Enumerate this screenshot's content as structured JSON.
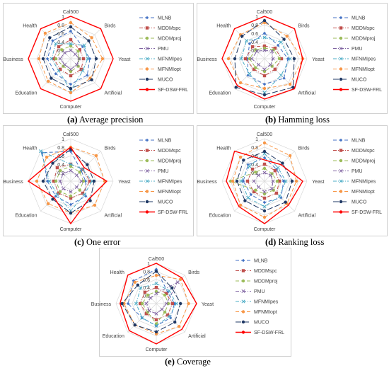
{
  "axes": [
    "Cal500",
    "Birds",
    "Yeast",
    "Artificial",
    "Computer",
    "Education",
    "Business",
    "Health"
  ],
  "tick_labels": [
    "0.2",
    "0.4",
    "0.6",
    "0.8",
    "1"
  ],
  "series_names": [
    "MLNB",
    "MDDMspc",
    "MDDMproj",
    "PMU",
    "MFNMIpes",
    "MFNMIopt",
    "MUCO",
    "SF-DSW-FRL"
  ],
  "series_colors": [
    "#4472c4",
    "#c0504d",
    "#9bbb59",
    "#8064a2",
    "#4bacc6",
    "#f79646",
    "#1f3864",
    "#ff0000"
  ],
  "panels": [
    {
      "id": "a",
      "label": "(a)",
      "title": "Average precision"
    },
    {
      "id": "b",
      "label": "(b)",
      "title": "Hamming loss"
    },
    {
      "id": "c",
      "label": "(c)",
      "title": "One error"
    },
    {
      "id": "d",
      "label": "(d)",
      "title": "Ranking loss"
    },
    {
      "id": "e",
      "label": "(e)",
      "title": "Coverage"
    }
  ],
  "chart_data": [
    {
      "type": "radar",
      "title": "Average precision",
      "axes": [
        "Cal500",
        "Birds",
        "Yeast",
        "Artificial",
        "Computer",
        "Education",
        "Business",
        "Health"
      ],
      "ylim": [
        0,
        1
      ],
      "series": [
        {
          "name": "MLNB",
          "values": [
            0.65,
            0.4,
            0.45,
            0.55,
            0.6,
            0.5,
            0.55,
            0.6
          ]
        },
        {
          "name": "MDDMspc",
          "values": [
            0.45,
            0.3,
            0.3,
            0.35,
            0.4,
            0.35,
            0.4,
            0.4
          ]
        },
        {
          "name": "MDDMproj",
          "values": [
            0.3,
            0.25,
            0.2,
            0.25,
            0.3,
            0.25,
            0.35,
            0.3
          ]
        },
        {
          "name": "PMU",
          "values": [
            0.2,
            0.15,
            0.2,
            0.2,
            0.25,
            0.2,
            0.25,
            0.2
          ]
        },
        {
          "name": "MFNMIpes",
          "values": [
            0.35,
            0.45,
            0.4,
            0.4,
            0.75,
            0.4,
            0.45,
            0.5
          ]
        },
        {
          "name": "MFNMIopt",
          "values": [
            0.85,
            0.7,
            0.75,
            0.65,
            0.8,
            0.75,
            0.75,
            0.85
          ]
        },
        {
          "name": "MUCO",
          "values": [
            0.75,
            0.6,
            0.6,
            0.7,
            0.7,
            0.65,
            0.65,
            0.7
          ]
        },
        {
          "name": "SF-DSW-FRL",
          "values": [
            1,
            1,
            1,
            1,
            1,
            1,
            1,
            1
          ]
        }
      ]
    },
    {
      "type": "radar",
      "title": "Hamming loss",
      "axes": [
        "Cal500",
        "Birds",
        "Yeast",
        "Artificial",
        "Computer",
        "Education",
        "Business",
        "Health"
      ],
      "ylim": [
        0,
        1
      ],
      "series": [
        {
          "name": "MLNB",
          "values": [
            0.6,
            0.45,
            0.55,
            0.65,
            0.6,
            0.55,
            0.4,
            0.5
          ]
        },
        {
          "name": "MDDMspc",
          "values": [
            0.3,
            0.35,
            0.4,
            0.35,
            0.4,
            0.35,
            0.45,
            0.4
          ]
        },
        {
          "name": "MDDMproj",
          "values": [
            0.25,
            0.3,
            0.35,
            0.25,
            0.3,
            0.3,
            0.35,
            0.3
          ]
        },
        {
          "name": "PMU",
          "values": [
            0.2,
            0.25,
            0.2,
            0.2,
            0.25,
            0.2,
            0.3,
            0.25
          ]
        },
        {
          "name": "MFNMIpes",
          "values": [
            0.5,
            0.55,
            0.6,
            0.55,
            0.8,
            0.5,
            0.55,
            0.6
          ]
        },
        {
          "name": "MFNMIopt",
          "values": [
            0.85,
            0.75,
            0.9,
            0.85,
            0.7,
            0.8,
            0.85,
            0.8
          ]
        },
        {
          "name": "MUCO",
          "values": [
            0.9,
            0.65,
            0.7,
            0.95,
            0.85,
            0.95,
            0.7,
            0.75
          ]
        },
        {
          "name": "SF-DSW-FRL",
          "values": [
            1,
            1,
            0.9,
            1,
            0.95,
            0.9,
            1,
            1
          ]
        }
      ]
    },
    {
      "type": "radar",
      "title": "One error",
      "axes": [
        "Cal500",
        "Birds",
        "Yeast",
        "Artificial",
        "Computer",
        "Education",
        "Business",
        "Health"
      ],
      "ylim": [
        0,
        1
      ],
      "series": [
        {
          "name": "MLNB",
          "values": [
            0.7,
            0.35,
            0.35,
            0.5,
            0.55,
            0.5,
            0.55,
            0.95
          ]
        },
        {
          "name": "MDDMspc",
          "values": [
            0.4,
            0.4,
            0.45,
            0.4,
            0.4,
            0.4,
            0.4,
            0.45
          ]
        },
        {
          "name": "MDDMproj",
          "values": [
            0.35,
            0.3,
            0.3,
            0.3,
            0.35,
            0.35,
            0.35,
            0.35
          ]
        },
        {
          "name": "PMU",
          "values": [
            0.25,
            0.2,
            0.25,
            0.2,
            0.25,
            0.25,
            0.25,
            0.25
          ]
        },
        {
          "name": "MFNMIpes",
          "values": [
            0.4,
            0.4,
            0.5,
            0.45,
            0.7,
            0.45,
            0.5,
            1.0
          ]
        },
        {
          "name": "MFNMIopt",
          "values": [
            0.8,
            0.85,
            0.8,
            0.8,
            0.75,
            0.75,
            0.8,
            0.8
          ]
        },
        {
          "name": "MUCO",
          "values": [
            0.75,
            0.55,
            0.55,
            0.65,
            0.75,
            0.6,
            0.65,
            0.6
          ]
        },
        {
          "name": "SF-DSW-FRL",
          "values": [
            0.8,
            0.45,
            0.85,
            0.6,
            1,
            0.55,
            1,
            0.65
          ]
        }
      ]
    },
    {
      "type": "radar",
      "title": "Ranking loss",
      "axes": [
        "Cal500",
        "Birds",
        "Yeast",
        "Artificial",
        "Computer",
        "Education",
        "Business",
        "Health"
      ],
      "ylim": [
        0,
        1
      ],
      "series": [
        {
          "name": "MLNB",
          "values": [
            0.55,
            0.4,
            0.45,
            0.55,
            0.5,
            0.45,
            0.5,
            0.55
          ]
        },
        {
          "name": "MDDMspc",
          "values": [
            0.4,
            0.35,
            0.35,
            0.4,
            0.4,
            0.35,
            0.4,
            0.4
          ]
        },
        {
          "name": "MDDMproj",
          "values": [
            0.3,
            0.25,
            0.3,
            0.3,
            0.3,
            0.3,
            0.8,
            0.3
          ]
        },
        {
          "name": "PMU",
          "values": [
            0.2,
            0.2,
            0.2,
            0.25,
            0.25,
            0.2,
            0.25,
            0.2
          ]
        },
        {
          "name": "MFNMIpes",
          "values": [
            0.65,
            0.45,
            0.5,
            0.5,
            0.6,
            0.55,
            0.55,
            0.5
          ]
        },
        {
          "name": "MFNMIopt",
          "values": [
            0.9,
            0.85,
            0.75,
            0.75,
            0.85,
            0.8,
            0.75,
            0.8
          ]
        },
        {
          "name": "MUCO",
          "values": [
            0.7,
            0.6,
            0.65,
            0.7,
            0.7,
            0.65,
            0.65,
            0.7
          ]
        },
        {
          "name": "SF-DSW-FRL",
          "values": [
            0.5,
            0.55,
            0.9,
            0.8,
            1,
            0.85,
            0.9,
            1
          ]
        }
      ]
    },
    {
      "type": "radar",
      "title": "Coverage",
      "axes": [
        "Cal500",
        "Birds",
        "Yeast",
        "Artificial",
        "Computer",
        "Education",
        "Business",
        "Health"
      ],
      "ylim": [
        0,
        1
      ],
      "series": [
        {
          "name": "MLNB",
          "values": [
            0.85,
            0.4,
            0.45,
            0.5,
            0.55,
            0.5,
            0.7,
            0.8
          ]
        },
        {
          "name": "MDDMspc",
          "values": [
            0.4,
            0.35,
            0.4,
            0.4,
            0.4,
            0.35,
            0.4,
            0.4
          ]
        },
        {
          "name": "MDDMproj",
          "values": [
            0.3,
            0.3,
            0.3,
            0.3,
            0.5,
            0.3,
            0.35,
            0.3
          ]
        },
        {
          "name": "PMU",
          "values": [
            0.25,
            0.75,
            0.25,
            0.2,
            0.25,
            0.25,
            0.25,
            0.2
          ]
        },
        {
          "name": "MFNMIpes",
          "values": [
            0.5,
            0.45,
            0.5,
            0.45,
            0.55,
            0.5,
            0.5,
            0.55
          ]
        },
        {
          "name": "MFNMIopt",
          "values": [
            0.7,
            0.85,
            0.8,
            0.8,
            0.75,
            0.75,
            0.8,
            0.75
          ]
        },
        {
          "name": "MUCO",
          "values": [
            0.8,
            0.55,
            0.6,
            0.65,
            0.7,
            0.75,
            0.85,
            0.65
          ]
        },
        {
          "name": "SF-DSW-FRL",
          "values": [
            1,
            0.9,
            1,
            0.9,
            1,
            0.95,
            0.9,
            1
          ]
        }
      ]
    }
  ]
}
